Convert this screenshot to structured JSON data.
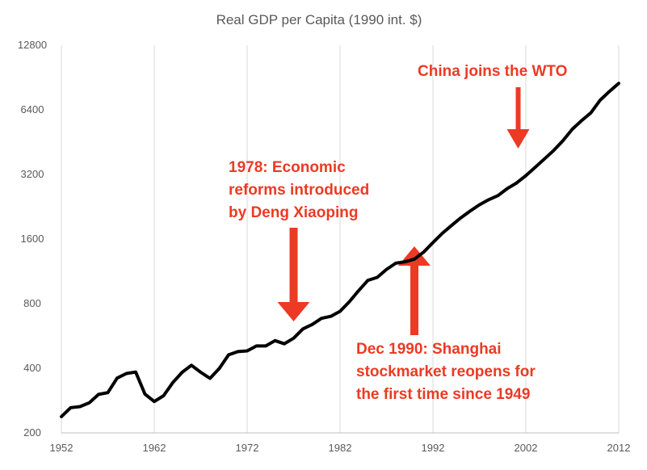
{
  "chart_data": {
    "type": "line",
    "title": "Real GDP per Capita (1990 int. $)",
    "xlabel": "",
    "ylabel": "",
    "y_scale": "log2",
    "ylim": [
      200,
      12800
    ],
    "xlim": [
      1952,
      2012
    ],
    "grid": "vertical",
    "x_ticks": [
      "1952",
      "1962",
      "1972",
      "1982",
      "1992",
      "2002",
      "2012"
    ],
    "y_ticks": [
      "200",
      "400",
      "800",
      "1600",
      "3200",
      "6400",
      "12800"
    ],
    "line_color": "#000000",
    "annotation_color": "#ec3a24",
    "series": [
      {
        "x": [
          1952,
          1953,
          1954,
          1955,
          1956,
          1957,
          1958,
          1959,
          1960,
          1961,
          1962,
          1963,
          1964,
          1965,
          1966,
          1967,
          1968,
          1969,
          1970,
          1971,
          1972,
          1973,
          1974,
          1975,
          1976,
          1977,
          1978,
          1979,
          1980,
          1981,
          1982,
          1983,
          1984,
          1985,
          1986,
          1987,
          1988,
          1989,
          1990,
          1991,
          1992,
          1993,
          1994,
          1995,
          1996,
          1997,
          1998,
          1999,
          2000,
          2001,
          2002,
          2003,
          2004,
          2005,
          2006,
          2007,
          2008,
          2009,
          2010,
          2011,
          2012
        ],
        "values": [
          238,
          262,
          265,
          276,
          302,
          308,
          360,
          378,
          384,
          303,
          280,
          298,
          343,
          383,
          413,
          383,
          359,
          399,
          462,
          478,
          482,
          508,
          508,
          538,
          520,
          552,
          610,
          640,
          683,
          698,
          737,
          817,
          920,
          1028,
          1060,
          1155,
          1235,
          1253,
          1290,
          1390,
          1540,
          1700,
          1850,
          2010,
          2160,
          2310,
          2440,
          2550,
          2750,
          2920,
          3160,
          3450,
          3780,
          4140,
          4600,
          5200,
          5700,
          6200,
          7100,
          7800,
          8500
        ]
      }
    ],
    "annotations": [
      {
        "lines": [
          "China joins the WTO"
        ],
        "x": 2001,
        "arrow_direction": "down"
      },
      {
        "lines": [
          "1978: Economic",
          "reforms introduced",
          "by Deng Xiaoping"
        ],
        "x": 1977,
        "arrow_direction": "down"
      },
      {
        "lines": [
          "Dec 1990: Shanghai",
          "stockmarket reopens for",
          "the first time since 1949"
        ],
        "x": 1990,
        "arrow_direction": "up"
      }
    ]
  }
}
